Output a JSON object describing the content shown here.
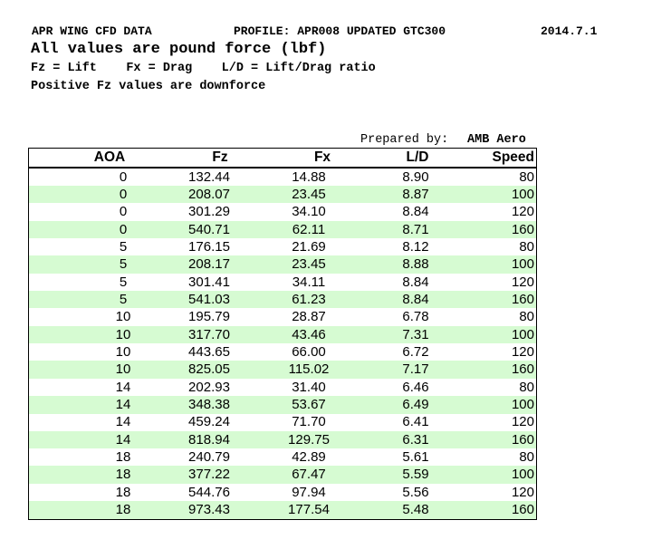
{
  "header": {
    "title": "APR WING CFD DATA",
    "profile": "PROFILE: APR008 UPDATED GTC300",
    "date": "2014.7.1",
    "units": "All values are pound force (lbf)",
    "legend": "Fz = Lift    Fx = Drag    L/D = Lift/Drag ratio",
    "note": "Positive Fz values are downforce"
  },
  "prepared_by": {
    "label": "Prepared by:",
    "name": "AMB Aero"
  },
  "table": {
    "columns": [
      "AOA",
      "Fz",
      "Fx",
      "L/D",
      "Speed"
    ],
    "rows": [
      [
        "0",
        "132.44",
        "14.88",
        "8.90",
        "80"
      ],
      [
        "0",
        "208.07",
        "23.45",
        "8.87",
        "100"
      ],
      [
        "0",
        "301.29",
        "34.10",
        "8.84",
        "120"
      ],
      [
        "0",
        "540.71",
        "62.11",
        "8.71",
        "160"
      ],
      [
        "5",
        "176.15",
        "21.69",
        "8.12",
        "80"
      ],
      [
        "5",
        "208.17",
        "23.45",
        "8.88",
        "100"
      ],
      [
        "5",
        "301.41",
        "34.11",
        "8.84",
        "120"
      ],
      [
        "5",
        "541.03",
        "61.23",
        "8.84",
        "160"
      ],
      [
        "10",
        "195.79",
        "28.87",
        "6.78",
        "80"
      ],
      [
        "10",
        "317.70",
        "43.46",
        "7.31",
        "100"
      ],
      [
        "10",
        "443.65",
        "66.00",
        "6.72",
        "120"
      ],
      [
        "10",
        "825.05",
        "115.02",
        "7.17",
        "160"
      ],
      [
        "14",
        "202.93",
        "31.40",
        "6.46",
        "80"
      ],
      [
        "14",
        "348.38",
        "53.67",
        "6.49",
        "100"
      ],
      [
        "14",
        "459.24",
        "71.70",
        "6.41",
        "120"
      ],
      [
        "14",
        "818.94",
        "129.75",
        "6.31",
        "160"
      ],
      [
        "18",
        "240.79",
        "42.89",
        "5.61",
        "80"
      ],
      [
        "18",
        "377.22",
        "67.47",
        "5.59",
        "100"
      ],
      [
        "18",
        "544.76",
        "97.94",
        "5.56",
        "120"
      ],
      [
        "18",
        "973.43",
        "177.54",
        "5.48",
        "160"
      ]
    ]
  }
}
